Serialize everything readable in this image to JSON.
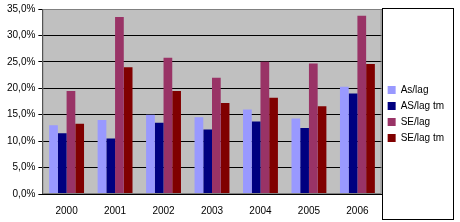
{
  "chart_data": {
    "type": "bar",
    "categories": [
      "2000",
      "2001",
      "2002",
      "2003",
      "2004",
      "2005",
      "2006"
    ],
    "series": [
      {
        "name": "As/lag",
        "color": "#9999ff",
        "values": [
          13.0,
          14.0,
          15.0,
          14.5,
          16.0,
          14.3,
          20.3
        ]
      },
      {
        "name": "AS/lag tm",
        "color": "#000080",
        "values": [
          11.5,
          10.5,
          13.5,
          12.2,
          13.7,
          12.5,
          19.0
        ]
      },
      {
        "name": "SE/lag",
        "color": "#993366",
        "values": [
          19.5,
          33.5,
          25.8,
          22.0,
          25.0,
          24.7,
          33.7
        ]
      },
      {
        "name": "SE/lag tm",
        "color": "#800000",
        "values": [
          13.3,
          24.0,
          19.5,
          17.2,
          18.2,
          16.6,
          24.6
        ]
      }
    ],
    "ylim": [
      0,
      35
    ],
    "yticks": [
      {
        "value": 0,
        "label": "0,0%"
      },
      {
        "value": 5,
        "label": "5,0%"
      },
      {
        "value": 10,
        "label": "10,0%"
      },
      {
        "value": 15,
        "label": "15,0%"
      },
      {
        "value": 20,
        "label": "20,0%"
      },
      {
        "value": 25,
        "label": "25,0%"
      },
      {
        "value": 30,
        "label": "30,0%"
      },
      {
        "value": 35,
        "label": "35,0%"
      }
    ],
    "grid": true,
    "legend": "right"
  }
}
